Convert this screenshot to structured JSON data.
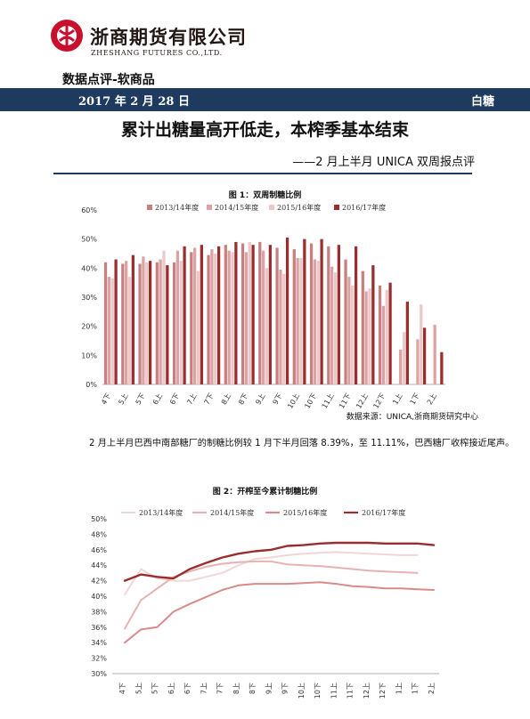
{
  "header": {
    "logo_text_cn": "浙商期货有限公司",
    "logo_text_en": "ZHESHANG FUTURES CO.,LTD.",
    "section_label": "数据点评-软商品",
    "date": "2017 年 2 月 28 日",
    "tag": "白糖"
  },
  "article": {
    "title": "累计出糖量高开低走，本榨季基本结束",
    "subtitle": "——2 月上半月 UNICA 双周报点评",
    "paragraph": "2 月上半月巴西中南部糖厂的制糖比例较 1 月下半月回落 8.39%，至 11.11%，巴西糖厂收榨接近尾声。",
    "source": "数据来源：UNICA,浙商期货研究中心"
  },
  "colors": {
    "banner": "#1e3a5f",
    "logo_red": "#c8102e",
    "s1": "#c97f7f",
    "s2": "#dba3a3",
    "s3": "#ecc8c8",
    "s4": "#9a2e2e",
    "l1": "#f1d6d6",
    "l2": "#e8b2b2",
    "l3": "#d98b8b",
    "l4": "#9a2e2e"
  },
  "chart_data": [
    {
      "type": "bar",
      "title": "图 1：双周制糖比例",
      "categories": [
        "4下",
        "5上",
        "5下",
        "6上",
        "6下",
        "7上",
        "7下",
        "8上",
        "8下",
        "9上",
        "9下",
        "10上",
        "10下",
        "11上",
        "11下",
        "12上",
        "12下",
        "1上",
        "1下",
        "2上"
      ],
      "ylim": [
        0,
        60
      ],
      "yticks": [
        "0%",
        "10%",
        "20%",
        "30%",
        "40%",
        "50%",
        "60%"
      ],
      "legend_position": "top",
      "series": [
        {
          "name": "2013/14年度",
          "values": [
            42,
            41.5,
            41.5,
            42,
            42,
            45.5,
            44.5,
            48,
            48.5,
            49,
            47,
            46.5,
            48.5,
            47.5,
            43,
            39,
            34,
            null,
            null,
            null
          ]
        },
        {
          "name": "2014/15年度",
          "values": [
            37,
            42.5,
            44,
            43,
            46,
            47,
            46.5,
            46,
            45.5,
            46,
            39.5,
            43.5,
            43,
            40.5,
            37,
            32,
            27,
            12,
            15.5,
            20.5
          ]
        },
        {
          "name": "2015/16年度",
          "values": [
            36.5,
            37,
            42,
            46,
            42.5,
            39,
            45,
            45.5,
            49,
            40,
            38,
            43.5,
            42.5,
            38.5,
            34,
            33,
            32.5,
            18,
            27.5,
            null
          ]
        },
        {
          "name": "2016/17年度",
          "values": [
            43,
            44.5,
            42.5,
            41,
            47.5,
            48,
            47.5,
            49,
            48,
            48,
            50.5,
            50,
            50,
            48,
            47.5,
            41,
            35,
            28.5,
            19.5,
            11.11
          ]
        }
      ]
    },
    {
      "type": "line",
      "title": "图 2：开榨至今累计制糖比例",
      "categories": [
        "4下",
        "5上",
        "5下",
        "6上",
        "6下",
        "7上",
        "7下",
        "8上",
        "8下",
        "9上",
        "9下",
        "10上",
        "10下",
        "11上",
        "11下",
        "12上",
        "12下",
        "1上",
        "1下",
        "2上"
      ],
      "ylim": [
        30,
        50
      ],
      "yticks": [
        "30%",
        "32%",
        "34%",
        "36%",
        "38%",
        "40%",
        "42%",
        "44%",
        "46%",
        "48%",
        "50%"
      ],
      "legend_position": "top",
      "series": [
        {
          "name": "2013/14年度",
          "values": [
            40.2,
            43.5,
            42.3,
            42.0,
            42.0,
            42.5,
            43.0,
            44.0,
            44.8,
            45.0,
            45.3,
            45.5,
            45.6,
            45.7,
            45.6,
            45.5,
            45.4,
            45.3,
            45.3,
            null
          ]
        },
        {
          "name": "2014/15年度",
          "values": [
            35.8,
            39.5,
            41.0,
            42.5,
            43.2,
            43.8,
            44.2,
            44.4,
            44.5,
            44.5,
            44.1,
            44.0,
            43.9,
            43.7,
            43.5,
            43.3,
            43.2,
            43.1,
            43.0,
            null
          ]
        },
        {
          "name": "2015/16年度",
          "values": [
            34.0,
            35.7,
            36.0,
            38.0,
            39.0,
            39.9,
            40.8,
            41.4,
            41.6,
            41.6,
            41.6,
            41.7,
            41.8,
            41.6,
            41.3,
            41.2,
            41.0,
            41.0,
            40.9,
            40.8
          ]
        },
        {
          "name": "2016/17年度",
          "values": [
            42.0,
            42.8,
            42.5,
            42.3,
            43.5,
            44.3,
            45.0,
            45.5,
            45.8,
            46.0,
            46.5,
            46.6,
            46.8,
            46.9,
            46.9,
            46.9,
            46.8,
            46.8,
            46.8,
            46.6
          ]
        }
      ]
    }
  ]
}
